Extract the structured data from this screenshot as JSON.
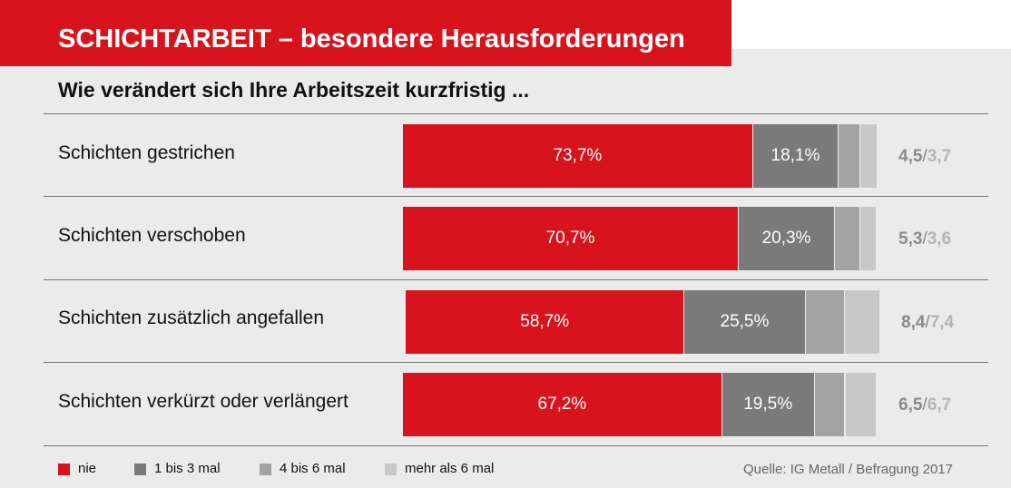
{
  "title": "SCHICHTARBEIT – besondere Herausforderungen",
  "subtitle": "Wie verändert sich Ihre Arbeitszeit kurzfristig ...",
  "source": "Quelle: IG Metall / Befragung 2017",
  "colors": {
    "brand_red": "#d7141e",
    "nie": "#d7141e",
    "1_bis_3_mal": "#7a7a7a",
    "4_bis_6_mal": "#a3a3a3",
    "mehr_als_6_mal": "#c8c8c8"
  },
  "chart_data": {
    "type": "bar",
    "orientation": "horizontal",
    "stacked": true,
    "categories": [
      "Schichten gestrichen",
      "Schichten verschoben",
      "Schichten zusätzlich angefallen",
      "Schichten verkürzt oder verlängert"
    ],
    "series": [
      {
        "name": "nie",
        "values": [
          73.7,
          70.7,
          58.7,
          67.2
        ],
        "labels": [
          "73,7%",
          "70,7%",
          "58,7%",
          "67,2%"
        ]
      },
      {
        "name": "1 bis 3 mal",
        "values": [
          18.1,
          20.3,
          25.5,
          19.5
        ],
        "labels": [
          "18,1%",
          "20,3%",
          "25,5%",
          "19,5%"
        ]
      },
      {
        "name": "4 bis 6 mal",
        "values": [
          4.5,
          5.3,
          8.4,
          6.5
        ],
        "labels": [
          "4,5",
          "5,3",
          "8,4",
          "6,5"
        ]
      },
      {
        "name": "mehr als 6 mal",
        "values": [
          3.7,
          3.6,
          7.4,
          6.7
        ],
        "labels": [
          "3,7",
          "3,6",
          "7,4",
          "6,7"
        ]
      }
    ],
    "xlim": [
      0,
      100
    ],
    "legend_position": "bottom-left",
    "grid": false
  }
}
